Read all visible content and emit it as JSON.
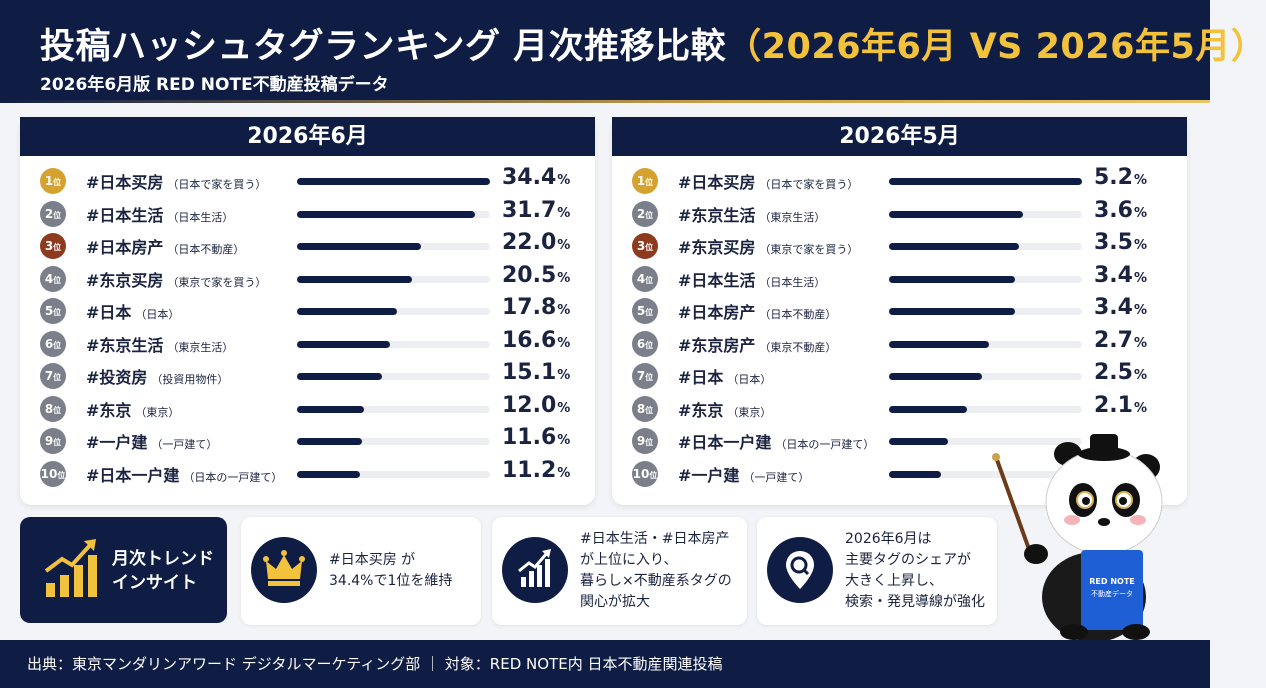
{
  "header": {
    "title_main": "投稿ハッシュタグランキング 月次推移比較",
    "title_period": "（2026年6月 VS 2026年5月）",
    "subtitle": "2026年6月版 RED NOTE不動産投稿データ"
  },
  "rank_suffix": "位",
  "percent_unit": "%",
  "panels": [
    {
      "heading": "2026年6月",
      "rows": [
        {
          "rank": "1",
          "tag": "#日本买房",
          "note": "（日本で家を買う）",
          "value": 34.4,
          "display": "34.4"
        },
        {
          "rank": "2",
          "tag": "#日本生活",
          "note": "（日本生活）",
          "value": 31.7,
          "display": "31.7"
        },
        {
          "rank": "3",
          "tag": "#日本房产",
          "note": "（日本不動産）",
          "value": 22.0,
          "display": "22.0"
        },
        {
          "rank": "4",
          "tag": "#东京买房",
          "note": "（東京で家を買う）",
          "value": 20.5,
          "display": "20.5"
        },
        {
          "rank": "5",
          "tag": "#日本",
          "note": "（日本）",
          "value": 17.8,
          "display": "17.8"
        },
        {
          "rank": "6",
          "tag": "#东京生活",
          "note": "（東京生活）",
          "value": 16.6,
          "display": "16.6"
        },
        {
          "rank": "7",
          "tag": "#投资房",
          "note": "（投資用物件）",
          "value": 15.1,
          "display": "15.1"
        },
        {
          "rank": "8",
          "tag": "#东京",
          "note": "（東京）",
          "value": 12.0,
          "display": "12.0"
        },
        {
          "rank": "9",
          "tag": "#一户建",
          "note": "（一戸建て）",
          "value": 11.6,
          "display": "11.6"
        },
        {
          "rank": "10",
          "tag": "#日本一户建",
          "note": "（日本の一戸建て）",
          "value": 11.2,
          "display": "11.2"
        }
      ]
    },
    {
      "heading": "2026年5月",
      "rows": [
        {
          "rank": "1",
          "tag": "#日本买房",
          "note": "（日本で家を買う）",
          "value": 5.2,
          "display": "5.2"
        },
        {
          "rank": "2",
          "tag": "#东京生活",
          "note": "（東京生活）",
          "value": 3.6,
          "display": "3.6"
        },
        {
          "rank": "3",
          "tag": "#东京买房",
          "note": "（東京で家を買う）",
          "value": 3.5,
          "display": "3.5"
        },
        {
          "rank": "4",
          "tag": "#日本生活",
          "note": "（日本生活）",
          "value": 3.4,
          "display": "3.4"
        },
        {
          "rank": "5",
          "tag": "#日本房产",
          "note": "（日本不動産）",
          "value": 3.4,
          "display": "3.4"
        },
        {
          "rank": "6",
          "tag": "#东京房产",
          "note": "（東京不動産）",
          "value": 2.7,
          "display": "2.7"
        },
        {
          "rank": "7",
          "tag": "#日本",
          "note": "（日本）",
          "value": 2.5,
          "display": "2.5"
        },
        {
          "rank": "8",
          "tag": "#东京",
          "note": "（東京）",
          "value": 2.1,
          "display": "2.1"
        },
        {
          "rank": "9",
          "tag": "#日本一户建",
          "note": "（日本の一戸建て）",
          "value": 1.6,
          "display": ""
        },
        {
          "rank": "10",
          "tag": "#一户建",
          "note": "（一戸建て）",
          "value": 1.4,
          "display": ""
        }
      ]
    }
  ],
  "insights": {
    "label": "月次トレンド\nインサイト",
    "cards": [
      {
        "icon": "crown-icon",
        "text": "#日本买房 が\n34.4%で1位を維持"
      },
      {
        "icon": "growth-chart-icon",
        "text": "#日本生活・#日本房产\nが上位に入り、\n暮らし×不動産系タグの\n関心が拡大"
      },
      {
        "icon": "search-magnifier-icon",
        "text": "2026年6月は\n主要タグのシェアが\n大きく上昇し、\n検索・発見導線が強化"
      }
    ]
  },
  "mascot": {
    "book_text": "RED NOTE\n不動産データ"
  },
  "footer": {
    "text": "出典：東京マンダリンアワード デジタルマーケティング部 ｜ 対象：RED NOTE内 日本不動産関連投稿"
  },
  "colors": {
    "navy": "#0f1d45",
    "gold": "#d4a22f",
    "bronze": "#8e3a1e",
    "silver": "#7a7f89",
    "highlight": "#f2c23c"
  }
}
